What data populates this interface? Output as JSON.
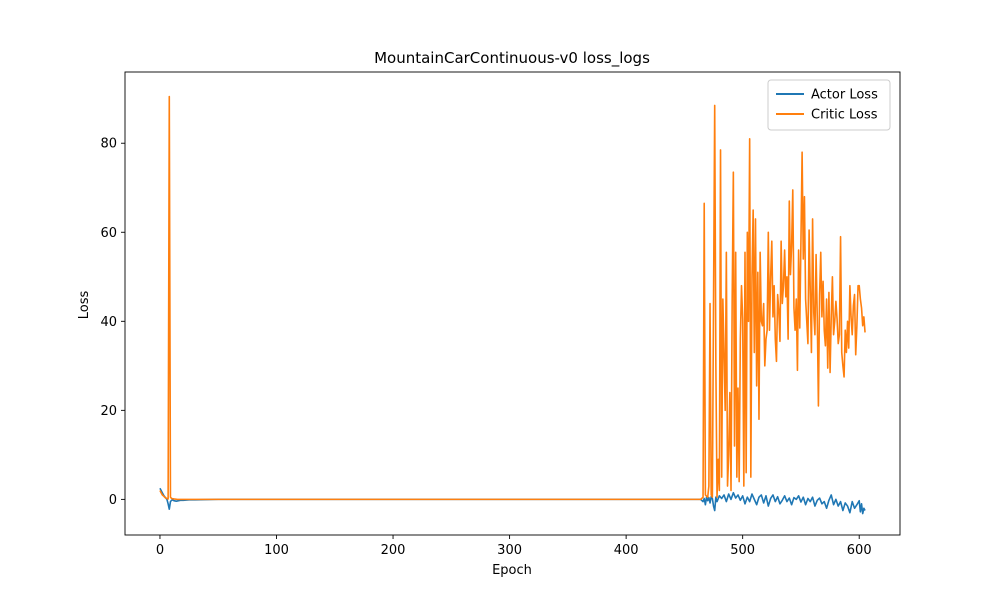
{
  "chart_data": {
    "type": "line",
    "title": "MountainCarContinuous-v0 loss_logs",
    "xlabel": "Epoch",
    "ylabel": "Loss",
    "xlim": [
      -30,
      635
    ],
    "ylim": [
      -8,
      96
    ],
    "xticks": [
      0,
      100,
      200,
      300,
      400,
      500,
      600
    ],
    "yticks": [
      0,
      20,
      40,
      60,
      80
    ],
    "grid": false,
    "legend_position": "top-right",
    "series": [
      {
        "name": "Actor Loss",
        "color": "#1f77b4",
        "x": [
          0,
          1,
          2,
          3,
          4,
          5,
          6,
          7,
          8,
          9,
          10,
          11,
          12,
          14,
          16,
          18,
          20,
          25,
          30,
          50,
          100,
          150,
          200,
          250,
          300,
          350,
          400,
          450,
          464,
          466,
          467,
          468,
          469,
          470,
          471,
          472,
          473,
          474,
          475,
          476,
          477,
          478,
          480,
          482,
          484,
          486,
          488,
          490,
          492,
          494,
          496,
          498,
          500,
          502,
          504,
          506,
          508,
          510,
          512,
          514,
          516,
          518,
          520,
          522,
          524,
          526,
          528,
          530,
          532,
          534,
          536,
          538,
          540,
          542,
          544,
          546,
          548,
          550,
          552,
          554,
          556,
          558,
          560,
          562,
          564,
          566,
          568,
          570,
          572,
          574,
          576,
          578,
          580,
          582,
          584,
          586,
          588,
          590,
          592,
          594,
          596,
          598,
          600,
          601,
          602,
          603,
          604,
          605
        ],
        "y": [
          2.5,
          2.0,
          1.5,
          1.0,
          0.6,
          0.3,
          0.0,
          -1.0,
          -2.2,
          -0.5,
          -0.2,
          -0.1,
          -0.3,
          -0.4,
          -0.3,
          -0.2,
          -0.2,
          -0.1,
          -0.1,
          0.0,
          0.0,
          0.0,
          0.0,
          0.0,
          0.0,
          0.0,
          0.0,
          0.0,
          0.0,
          -0.5,
          0.2,
          -1.2,
          0.5,
          -0.3,
          0.4,
          -0.8,
          0.6,
          0.2,
          -1.5,
          -2.5,
          0.5,
          -0.5,
          0.8,
          0.2,
          1.0,
          -0.5,
          1.2,
          0.0,
          1.5,
          0.3,
          1.0,
          -0.2,
          0.8,
          -1.0,
          0.5,
          -0.5,
          1.2,
          0.0,
          -1.2,
          0.5,
          1.0,
          -0.8,
          0.8,
          -1.5,
          0.2,
          1.0,
          -0.5,
          0.6,
          -1.0,
          -0.2,
          0.8,
          -0.5,
          0.3,
          -1.2,
          0.4,
          0.0,
          0.8,
          -0.6,
          0.5,
          -1.2,
          0.2,
          -0.5,
          0.5,
          -1.5,
          -0.2,
          0.3,
          -1.0,
          -0.5,
          -2.0,
          -0.2,
          1.0,
          -1.2,
          0.0,
          -1.5,
          -0.5,
          -2.5,
          -0.8,
          -1.5,
          -3.0,
          -0.5,
          -2.0,
          -1.2,
          -0.3,
          -2.8,
          -1.0,
          -3.2,
          -2.0,
          -2.5
        ]
      },
      {
        "name": "Critic Loss",
        "color": "#ff7f0e",
        "x": [
          0,
          1,
          2,
          3,
          4,
          5,
          6,
          7,
          8,
          9,
          10,
          12,
          15,
          20,
          30,
          50,
          100,
          150,
          200,
          250,
          300,
          350,
          400,
          450,
          464,
          466,
          467,
          468,
          470,
          471,
          472,
          473,
          474,
          476,
          477,
          478,
          479,
          480,
          481,
          482,
          483,
          485,
          486,
          487,
          488,
          489,
          490,
          491,
          492,
          493,
          494,
          495,
          496,
          497,
          498,
          499,
          500,
          501,
          502,
          503,
          504,
          505,
          506,
          507,
          508,
          509,
          510,
          511,
          512,
          513,
          514,
          515,
          516,
          517,
          518,
          519,
          520,
          521,
          522,
          523,
          524,
          525,
          526,
          527,
          528,
          529,
          530,
          531,
          532,
          533,
          534,
          535,
          536,
          537,
          538,
          539,
          540,
          541,
          542,
          543,
          544,
          545,
          546,
          547,
          548,
          549,
          550,
          551,
          552,
          553,
          554,
          555,
          556,
          557,
          558,
          559,
          560,
          561,
          562,
          563,
          564,
          565,
          566,
          567,
          568,
          569,
          570,
          571,
          572,
          573,
          574,
          575,
          576,
          577,
          578,
          579,
          580,
          581,
          582,
          583,
          584,
          585,
          586,
          587,
          588,
          589,
          590,
          591,
          592,
          593,
          594,
          595,
          596,
          597,
          598,
          599,
          600,
          601,
          602,
          603,
          604,
          605
        ],
        "y": [
          2.0,
          1.5,
          1.0,
          0.8,
          0.5,
          0.3,
          0.2,
          0.1,
          90.5,
          0.5,
          0.2,
          0.1,
          0.0,
          0.0,
          0.0,
          0.0,
          0.0,
          0.0,
          0.0,
          0.0,
          0.0,
          0.0,
          0.0,
          0.0,
          0.0,
          0.5,
          66.5,
          1.0,
          0.5,
          3.0,
          44.0,
          1.0,
          0.5,
          88.5,
          30.0,
          0.5,
          9.0,
          2.0,
          78.5,
          5.0,
          45.0,
          20.0,
          55.5,
          3.0,
          10.0,
          24.0,
          2.0,
          45.0,
          73.5,
          12.0,
          55.5,
          5.0,
          25.0,
          4.0,
          36.0,
          48.0,
          40.5,
          3.0,
          55.5,
          6.0,
          60.0,
          40.0,
          81.0,
          5.0,
          50.0,
          65.0,
          33.0,
          63.0,
          25.5,
          51.0,
          18.0,
          55.5,
          40.0,
          39.0,
          44.0,
          30.0,
          36.0,
          38.0,
          60.0,
          38.0,
          50.0,
          58.0,
          41.0,
          48.0,
          36.0,
          31.0,
          46.0,
          42.5,
          35.5,
          58.0,
          44.0,
          48.0,
          56.0,
          45.5,
          50.0,
          36.0,
          67.0,
          50.5,
          57.0,
          69.5,
          43.0,
          38.0,
          45.0,
          29.0,
          56.0,
          38.5,
          58.0,
          78.0,
          54.0,
          68.0,
          45.0,
          40.0,
          35.0,
          60.5,
          47.0,
          33.0,
          63.0,
          42.0,
          37.0,
          55.0,
          41.0,
          21.0,
          46.0,
          55.5,
          41.0,
          49.0,
          38.0,
          34.5,
          45.0,
          29.5,
          46.5,
          28.5,
          41.0,
          50.0,
          37.0,
          40.0,
          44.5,
          40.5,
          35.0,
          37.0,
          59.0,
          33.0,
          30.0,
          27.5,
          38.0,
          33.0,
          40.0,
          34.0,
          48.0,
          41.0,
          37.0,
          43.5,
          46.0,
          32.5,
          39.0,
          48.0,
          48.0,
          45.0,
          43.0,
          39.0,
          41.0,
          37.5
        ]
      }
    ]
  }
}
